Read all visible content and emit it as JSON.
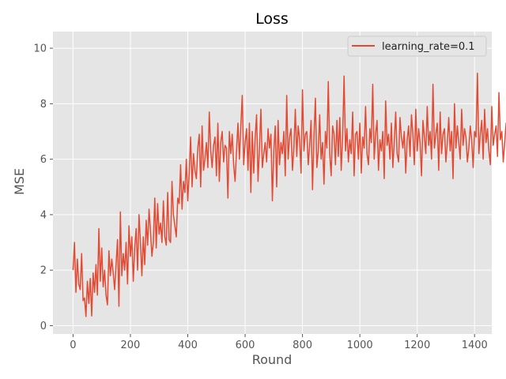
{
  "chart_data": {
    "type": "line",
    "title": "Loss",
    "xlabel": "Round",
    "ylabel": "MSE",
    "xlim": [
      -70,
      1460
    ],
    "ylim": [
      -0.3,
      10.6
    ],
    "xticks": [
      0,
      200,
      400,
      600,
      800,
      1000,
      1200,
      1400
    ],
    "yticks": [
      0,
      2,
      4,
      6,
      8,
      10
    ],
    "grid": true,
    "legend_position": "top-right",
    "colors": {
      "plot_bg": "#e5e5e5",
      "grid": "#ffffff",
      "line": "#e24a33"
    },
    "series": [
      {
        "name": "learning_rate=0.1",
        "color": "#e24a33",
        "x_start": 0,
        "x_step": 5,
        "values": [
          2.0,
          3.0,
          1.2,
          2.4,
          1.5,
          1.3,
          2.6,
          0.9,
          1.0,
          0.33,
          1.6,
          0.8,
          1.7,
          0.35,
          1.9,
          1.2,
          2.2,
          1.1,
          3.5,
          1.6,
          2.8,
          1.4,
          2.0,
          1.1,
          0.75,
          2.7,
          1.8,
          2.4,
          1.9,
          1.3,
          2.2,
          3.1,
          0.7,
          4.1,
          1.8,
          2.6,
          2.0,
          3.0,
          1.5,
          3.6,
          2.5,
          3.2,
          1.6,
          2.8,
          3.5,
          2.0,
          4.0,
          3.0,
          1.8,
          3.2,
          2.2,
          3.8,
          2.9,
          4.2,
          3.4,
          2.5,
          3.0,
          4.6,
          2.8,
          4.4,
          3.3,
          3.7,
          3.0,
          4.5,
          3.2,
          2.9,
          4.8,
          3.1,
          3.0,
          5.2,
          4.0,
          3.6,
          3.2,
          4.6,
          4.4,
          5.8,
          4.2,
          5.2,
          4.8,
          6.0,
          4.5,
          5.5,
          6.8,
          5.0,
          6.2,
          5.6,
          5.3,
          6.4,
          6.9,
          5.0,
          7.2,
          5.6,
          6.0,
          6.6,
          5.7,
          7.7,
          6.3,
          5.7,
          6.5,
          6.8,
          5.4,
          7.3,
          5.2,
          6.6,
          7.0,
          5.9,
          6.5,
          6.4,
          4.6,
          7.0,
          6.2,
          6.9,
          5.8,
          5.2,
          6.3,
          7.3,
          6.0,
          7.2,
          8.3,
          5.8,
          6.6,
          7.1,
          5.6,
          7.3,
          4.8,
          7.0,
          5.5,
          6.8,
          7.6,
          5.2,
          6.4,
          7.8,
          5.7,
          6.2,
          6.6,
          5.9,
          7.1,
          6.4,
          6.9,
          4.5,
          6.3,
          7.2,
          5.0,
          7.4,
          5.8,
          6.6,
          6.2,
          7.0,
          5.4,
          8.3,
          6.0,
          6.8,
          7.1,
          5.6,
          6.4,
          7.8,
          6.1,
          7.2,
          6.7,
          5.5,
          8.5,
          6.3,
          6.9,
          7.0,
          5.8,
          6.5,
          7.4,
          4.9,
          6.8,
          8.2,
          5.7,
          6.3,
          7.6,
          6.0,
          6.6,
          5.1,
          7.0,
          6.4,
          8.8,
          6.2,
          5.4,
          7.2,
          6.9,
          5.8,
          7.4,
          6.1,
          7.5,
          5.6,
          6.8,
          9.0,
          6.3,
          7.1,
          5.9,
          6.7,
          6.2,
          7.7,
          5.4,
          6.9,
          7.0,
          6.0,
          7.3,
          5.5,
          6.8,
          6.4,
          7.9,
          6.2,
          5.8,
          7.1,
          6.6,
          8.7,
          6.0,
          6.9,
          7.4,
          5.6,
          6.7,
          6.3,
          7.0,
          5.3,
          8.1,
          6.5,
          6.9,
          6.0,
          7.3,
          5.7,
          6.6,
          7.7,
          6.2,
          5.9,
          7.5,
          6.8,
          6.4,
          7.0,
          5.5,
          6.7,
          7.2,
          6.1,
          7.6,
          6.9,
          5.8,
          7.8,
          6.3,
          7.1,
          6.6,
          5.4,
          7.4,
          6.8,
          6.2,
          7.9,
          6.5,
          7.0,
          6.0,
          8.7,
          6.4,
          6.9,
          7.3,
          5.6,
          7.7,
          6.2,
          6.9,
          7.1,
          5.9,
          6.6,
          7.5,
          6.3,
          7.0,
          5.3,
          8.0,
          6.4,
          7.2,
          6.6,
          6.0,
          7.8,
          6.5,
          7.1,
          6.8,
          5.9,
          6.4,
          7.2,
          6.7,
          5.7,
          7.0,
          6.8,
          9.1,
          6.2,
          6.9,
          7.4,
          6.0,
          7.8,
          6.6,
          7.1,
          6.3,
          5.8,
          7.9,
          6.5,
          6.9,
          7.2,
          6.1,
          8.4,
          6.7,
          7.0,
          5.9,
          6.6,
          7.3,
          6.4,
          7.7,
          6.2,
          6.8,
          7.5,
          5.6,
          7.0,
          6.4,
          8.2,
          6.1,
          7.3,
          6.6,
          9.4,
          6.0,
          7.1,
          6.9,
          5.8,
          7.6,
          6.7,
          7.2,
          6.3,
          5.2,
          7.4,
          6.9,
          8.1,
          6.1,
          7.0,
          10.2,
          6.5,
          7.7,
          8.9,
          6.6,
          7.2,
          6.0,
          7.8,
          6.8,
          5.7,
          7.3,
          6.9,
          8.0,
          6.5,
          7.1,
          6.3,
          5.9,
          7.7,
          6.6,
          7.2,
          5.8,
          8.2,
          6.5,
          7.0,
          6.8,
          5.5,
          7.6,
          6.6,
          9.0,
          6.1,
          7.0,
          6.4,
          5.3,
          7.3,
          6.8,
          8.0,
          6.2,
          7.1,
          6.6,
          5.8,
          7.4,
          6.9,
          7.2,
          6.0,
          8.3,
          6.5,
          6.9,
          7.3,
          5.7,
          7.8,
          6.3,
          7.1,
          6.6,
          6.0,
          8.5,
          6.4,
          7.0,
          6.8,
          5.2,
          7.4,
          6.7,
          7.1,
          6.2,
          8.2,
          6.5,
          6.9,
          7.4,
          5.9,
          6.6,
          7.6,
          6.1,
          7.2,
          6.8,
          9.1,
          6.4,
          7.0,
          5.6,
          7.7,
          6.6,
          7.1,
          6.2,
          8.0,
          5.8,
          6.5,
          7.2,
          5.7,
          6.8,
          7.0,
          6.1,
          7.4,
          6.6,
          7.2,
          6.0,
          8.6,
          6.4,
          6.9,
          7.5,
          5.5,
          6.6,
          7.3,
          6.2,
          8.4,
          6.9,
          6.5,
          7.8,
          4.3,
          6.6,
          4.1,
          7.2,
          6.9,
          8.2,
          5.6,
          7.0,
          6.7,
          7.9,
          5.8,
          8.7,
          6.4,
          7.1,
          6.0,
          7.8,
          9.3,
          6.3,
          7.6,
          6.9,
          6.0,
          9.6,
          7.0,
          6.8,
          7.9,
          6.4,
          9.0,
          7.3,
          6.2,
          8.4,
          7.0,
          7.5,
          6.5,
          8.8,
          6.8,
          7.2,
          6.0,
          9.3,
          7.1,
          6.6,
          8.2,
          7.5,
          7.0,
          6.4,
          8.4,
          6.9,
          7.3,
          6.0,
          8.8,
          7.2,
          6.6,
          7.6,
          6.1,
          8.0,
          6.7,
          7.3,
          6.3,
          9.1,
          6.9,
          7.4,
          6.1,
          8.0,
          6.6,
          5.6,
          7.7,
          6.4,
          7.2,
          5.5,
          8.4,
          6.8,
          7.0,
          5.8,
          8.1,
          6.5,
          7.2,
          6.0,
          7.8,
          6.3,
          7.4,
          5.5,
          6.9,
          7.6,
          6.2,
          7.3,
          6.8,
          5.5,
          7.1,
          6.4,
          7.6,
          6.8,
          7.3,
          6.6,
          7.5
        ]
      }
    ]
  }
}
